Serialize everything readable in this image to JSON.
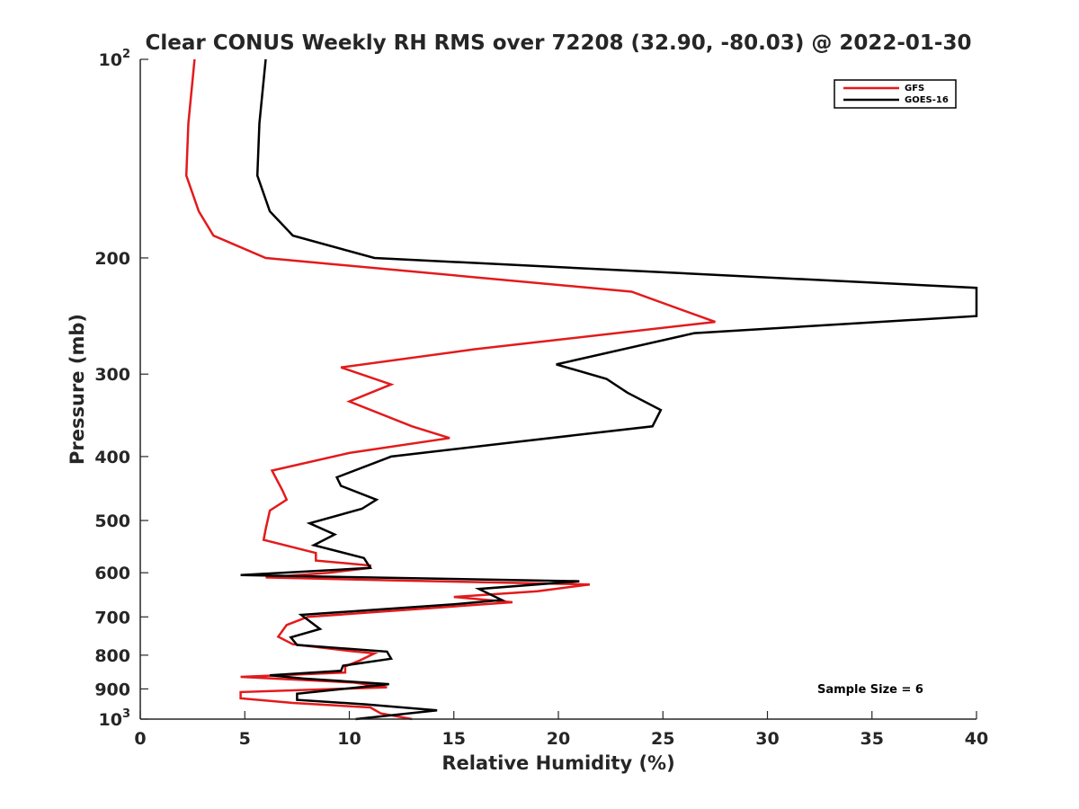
{
  "chart_data": {
    "type": "line",
    "title": "Clear CONUS Weekly RH RMS over 72208 (32.90, -80.03) @ 2022-01-30",
    "xlabel": "Relative Humidity (%)",
    "ylabel": "Pressure (mb)",
    "xlim": [
      0,
      40
    ],
    "ylim": [
      100,
      1000
    ],
    "y_scale": "log",
    "y_reversed": true,
    "x_ticks": [
      "0",
      "5",
      "10",
      "15",
      "20",
      "25",
      "30",
      "35",
      "40"
    ],
    "y_ticks": [
      {
        "value": 100,
        "base": "10",
        "exp": "2"
      },
      {
        "value": 200,
        "label": "200"
      },
      {
        "value": 300,
        "label": "300"
      },
      {
        "value": 400,
        "label": "400"
      },
      {
        "value": 500,
        "label": "500"
      },
      {
        "value": 600,
        "label": "600"
      },
      {
        "value": 700,
        "label": "700"
      },
      {
        "value": 800,
        "label": "800"
      },
      {
        "value": 900,
        "label": "900"
      },
      {
        "value": 1000,
        "base": "10",
        "exp": "3"
      }
    ],
    "legend_position": "top-right",
    "annotation": "Sample Size = 6",
    "series": [
      {
        "name": "GFS",
        "color": "#e31a1c",
        "points": [
          [
            2.6,
            100
          ],
          [
            2.3,
            125
          ],
          [
            2.2,
            150
          ],
          [
            2.8,
            170
          ],
          [
            3.5,
            185
          ],
          [
            6.0,
            200
          ],
          [
            23.5,
            225
          ],
          [
            27.5,
            250
          ],
          [
            16.0,
            275
          ],
          [
            9.6,
            293
          ],
          [
            12.0,
            311
          ],
          [
            10.0,
            330
          ],
          [
            13.0,
            360
          ],
          [
            14.8,
            375
          ],
          [
            10.0,
            395
          ],
          [
            6.3,
            420
          ],
          [
            6.8,
            450
          ],
          [
            7.0,
            465
          ],
          [
            6.2,
            483
          ],
          [
            6.0,
            515
          ],
          [
            5.9,
            535
          ],
          [
            8.4,
            560
          ],
          [
            8.4,
            575
          ],
          [
            11.0,
            585
          ],
          [
            11.0,
            590
          ],
          [
            9.0,
            600
          ],
          [
            6.0,
            610
          ],
          [
            12.0,
            616
          ],
          [
            21.5,
            625
          ],
          [
            19.0,
            640
          ],
          [
            15.0,
            653
          ],
          [
            17.8,
            665
          ],
          [
            8.0,
            700
          ],
          [
            7.0,
            720
          ],
          [
            6.6,
            750
          ],
          [
            7.3,
            770
          ],
          [
            10.0,
            788
          ],
          [
            11.2,
            795
          ],
          [
            10.5,
            815
          ],
          [
            9.8,
            832
          ],
          [
            9.8,
            850
          ],
          [
            4.8,
            863
          ],
          [
            10.2,
            880
          ],
          [
            11.8,
            895
          ],
          [
            4.8,
            910
          ],
          [
            4.8,
            930
          ],
          [
            7.3,
            945
          ],
          [
            11.0,
            960
          ],
          [
            11.5,
            980
          ],
          [
            13.0,
            1000
          ]
        ]
      },
      {
        "name": "GOES-16",
        "color": "#000000",
        "points": [
          [
            6.0,
            100
          ],
          [
            5.7,
            125
          ],
          [
            5.6,
            150
          ],
          [
            6.2,
            170
          ],
          [
            7.3,
            185
          ],
          [
            11.2,
            200
          ],
          [
            40.0,
            222
          ],
          [
            40.0,
            245
          ],
          [
            26.5,
            260
          ],
          [
            19.9,
            290
          ],
          [
            22.3,
            305
          ],
          [
            23.3,
            320
          ],
          [
            24.9,
            340
          ],
          [
            24.5,
            360
          ],
          [
            18.0,
            380
          ],
          [
            12.0,
            400
          ],
          [
            9.4,
            430
          ],
          [
            9.6,
            443
          ],
          [
            11.3,
            465
          ],
          [
            10.6,
            480
          ],
          [
            8.1,
            505
          ],
          [
            9.3,
            525
          ],
          [
            8.3,
            545
          ],
          [
            10.7,
            570
          ],
          [
            11.0,
            590
          ],
          [
            4.8,
            605
          ],
          [
            21.0,
            618
          ],
          [
            16.2,
            635
          ],
          [
            17.3,
            660
          ],
          [
            15.0,
            670
          ],
          [
            7.7,
            695
          ],
          [
            8.6,
            730
          ],
          [
            7.2,
            752
          ],
          [
            7.5,
            772
          ],
          [
            11.8,
            790
          ],
          [
            12.0,
            810
          ],
          [
            9.7,
            830
          ],
          [
            9.6,
            845
          ],
          [
            6.2,
            858
          ],
          [
            7.8,
            868
          ],
          [
            11.9,
            885
          ],
          [
            7.5,
            915
          ],
          [
            7.5,
            935
          ],
          [
            10.8,
            950
          ],
          [
            14.2,
            970
          ],
          [
            10.3,
            1000
          ]
        ]
      }
    ]
  }
}
